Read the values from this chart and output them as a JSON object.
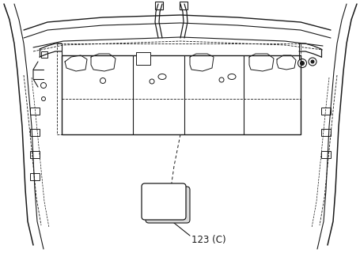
{
  "bg_color": "#ffffff",
  "line_color": "#1a1a1a",
  "label_text": "123 (C)",
  "label_fontsize": 8.5,
  "fig_width": 4.56,
  "fig_height": 3.2,
  "dpi": 100
}
